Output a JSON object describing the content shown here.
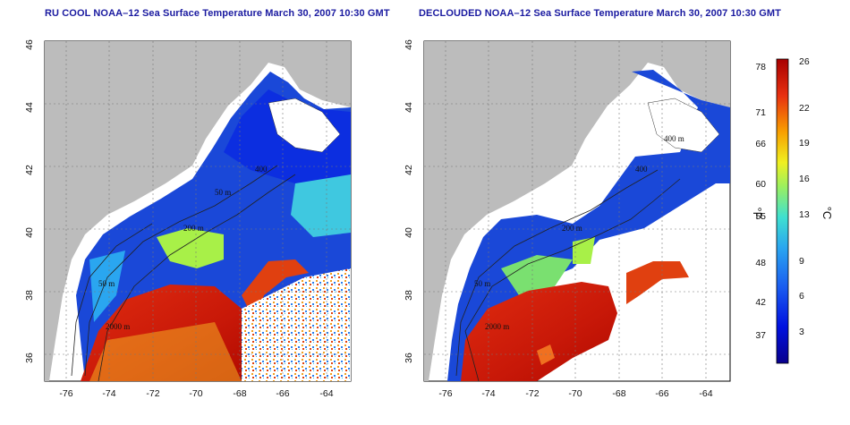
{
  "panels": [
    {
      "title": "RU COOL NOAA–12 Sea Surface Temperature March 30, 2007 10:30 GMT",
      "contour_labels": [
        "400",
        "200 m",
        "50 m",
        "2000 m",
        "50 m"
      ]
    },
    {
      "title": "DECLOUDED NOAA–12 Sea Surface Temperature March 30, 2007 10:30 GMT",
      "contour_labels": [
        "400",
        "200 m",
        "50 m",
        "2000 m",
        "400 m"
      ]
    }
  ],
  "lon_ticks": [
    "-76",
    "-74",
    "-72",
    "-70",
    "-68",
    "-66",
    "-64"
  ],
  "lat_ticks": [
    "46",
    "44",
    "42",
    "40",
    "38",
    "36"
  ],
  "colorbar": {
    "fahrenheit_unit": "°F",
    "celsius_unit": "°C",
    "fahrenheit_ticks": [
      "78",
      "71",
      "66",
      "60",
      "55",
      "48",
      "42",
      "37"
    ],
    "celsius_ticks": [
      "26",
      "22",
      "19",
      "16",
      "13",
      "9",
      "6",
      "3"
    ],
    "colors": [
      "#08008c",
      "#0010e0",
      "#1a5cf0",
      "#2aa6f0",
      "#3fe0d0",
      "#9af060",
      "#f0f020",
      "#f8a000",
      "#e83010",
      "#a80000"
    ]
  },
  "colors": {
    "land": "#bcbcbc",
    "cloud": "#ffffff",
    "cold_water": "#1a48d8",
    "warm_water": "#d02010"
  }
}
